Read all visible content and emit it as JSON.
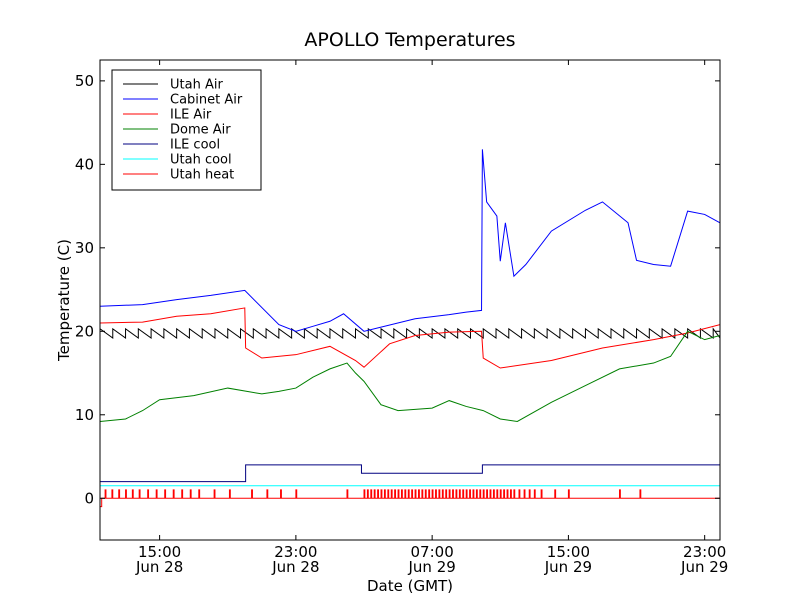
{
  "chart_data": {
    "type": "line",
    "title": "APOLLO Temperatures",
    "xlabel": "Date (GMT)",
    "ylabel": "Temperature (C)",
    "x_unit": "hours since Jun 28 00:00 GMT",
    "xlim": [
      11.5,
      47.9
    ],
    "ylim": [
      -5,
      52.5
    ],
    "grid": false,
    "legend_position": "top-left",
    "x_ticks": [
      {
        "value": 15,
        "label1": "15:00",
        "label2": "Jun 28"
      },
      {
        "value": 23,
        "label1": "23:00",
        "label2": "Jun 28"
      },
      {
        "value": 31,
        "label1": "07:00",
        "label2": "Jun 29"
      },
      {
        "value": 39,
        "label1": "15:00",
        "label2": "Jun 29"
      },
      {
        "value": 47,
        "label1": "23:00",
        "label2": "Jun 29"
      }
    ],
    "y_ticks": [
      {
        "value": 0,
        "label": "0"
      },
      {
        "value": 10,
        "label": "10"
      },
      {
        "value": 20,
        "label": "20"
      },
      {
        "value": 30,
        "label": "30"
      },
      {
        "value": 40,
        "label": "40"
      },
      {
        "value": 50,
        "label": "50"
      }
    ],
    "series": [
      {
        "name": "Utah Air",
        "color": "#000000",
        "kind": "sawtooth",
        "x_range": [
          11.5,
          47.9
        ],
        "base": 19.2,
        "amp": 1.1,
        "period": 0.75
      },
      {
        "name": "Cabinet Air",
        "color": "#0000ff",
        "kind": "line",
        "x": [
          11.5,
          14.0,
          16.0,
          18.0,
          20.0,
          22.0,
          23.0,
          24.0,
          25.0,
          25.8,
          27.0,
          28.0,
          30.0,
          32.0,
          33.0,
          33.9,
          33.95,
          34.2,
          34.8,
          35.0,
          35.3,
          35.8,
          36.0,
          36.5,
          38.0,
          40.0,
          41.0,
          42.5,
          43.0,
          44.0,
          45.0,
          46.0,
          47.0,
          47.9
        ],
        "y": [
          23.0,
          23.2,
          23.8,
          24.3,
          24.9,
          20.8,
          20.0,
          20.6,
          21.2,
          22.1,
          20.0,
          20.5,
          21.5,
          22.0,
          22.3,
          22.5,
          41.8,
          35.5,
          33.8,
          28.4,
          33.0,
          26.6,
          27.0,
          28.0,
          32.0,
          34.5,
          35.5,
          33.0,
          28.5,
          28.0,
          27.8,
          34.4,
          34.0,
          33.0
        ]
      },
      {
        "name": "ILE Air",
        "color": "#ff0000",
        "kind": "line",
        "x": [
          11.5,
          14.0,
          16.0,
          18.0,
          20.0,
          20.05,
          21.0,
          23.0,
          25.0,
          26.5,
          27.0,
          28.5,
          30.0,
          32.0,
          33.9,
          34.0,
          35.0,
          38.0,
          41.0,
          44.0,
          46.0,
          47.9
        ],
        "y": [
          21.0,
          21.1,
          21.8,
          22.1,
          22.8,
          18.0,
          16.8,
          17.2,
          18.2,
          16.5,
          15.7,
          18.5,
          19.5,
          19.9,
          20.0,
          16.8,
          15.6,
          16.5,
          18.0,
          19.0,
          19.8,
          20.8
        ]
      },
      {
        "name": "Dome Air",
        "color": "#008000",
        "kind": "line",
        "x": [
          11.5,
          13.0,
          14.0,
          15.0,
          17.0,
          19.0,
          21.0,
          22.0,
          23.0,
          24.0,
          25.0,
          26.0,
          26.5,
          27.0,
          28.0,
          29.0,
          31.0,
          32.0,
          33.0,
          34.0,
          35.0,
          36.0,
          38.0,
          40.0,
          42.0,
          44.0,
          45.0,
          46.0,
          47.0,
          47.9
        ],
        "y": [
          9.2,
          9.5,
          10.5,
          11.8,
          12.3,
          13.2,
          12.5,
          12.8,
          13.2,
          14.5,
          15.5,
          16.2,
          15.0,
          14.0,
          11.2,
          10.5,
          10.8,
          11.7,
          11.0,
          10.5,
          9.5,
          9.2,
          11.5,
          13.5,
          15.5,
          16.2,
          17.0,
          20.0,
          19.0,
          19.5
        ]
      },
      {
        "name": "ILE cool",
        "color": "#000080",
        "kind": "step",
        "x": [
          11.5,
          20.0,
          20.05,
          26.8,
          26.85,
          33.9,
          33.95,
          47.9
        ],
        "y": [
          2.0,
          2.0,
          4.0,
          4.0,
          3.0,
          3.0,
          4.0,
          4.0
        ]
      },
      {
        "name": "Utah cool",
        "color": "#00ffff",
        "kind": "line",
        "x": [
          11.5,
          47.9
        ],
        "y": [
          1.5,
          1.5
        ]
      },
      {
        "name": "Utah heat",
        "color": "#ff0000",
        "kind": "pulses",
        "base": 0,
        "pulse_height": 1,
        "initial_dip": -1,
        "pulse_x": [
          11.8,
          12.2,
          12.6,
          13.0,
          13.4,
          13.8,
          14.3,
          14.8,
          15.3,
          15.8,
          16.3,
          16.8,
          17.3,
          18.2,
          19.1,
          20.4,
          21.3,
          22.1,
          23.0,
          26.0,
          27.0,
          27.2,
          27.4,
          27.6,
          27.8,
          28.0,
          28.2,
          28.4,
          28.6,
          28.8,
          29.0,
          29.2,
          29.4,
          29.6,
          29.8,
          30.0,
          30.2,
          30.4,
          30.6,
          30.8,
          31.0,
          31.2,
          31.4,
          31.6,
          31.8,
          32.0,
          32.2,
          32.4,
          32.6,
          32.8,
          33.0,
          33.2,
          33.4,
          33.6,
          33.8,
          34.0,
          34.2,
          34.4,
          34.6,
          34.8,
          35.0,
          35.2,
          35.4,
          35.6,
          35.8,
          36.1,
          36.4,
          36.7,
          37.0,
          37.4,
          38.2,
          39.0,
          42.0,
          43.2
        ]
      }
    ]
  }
}
